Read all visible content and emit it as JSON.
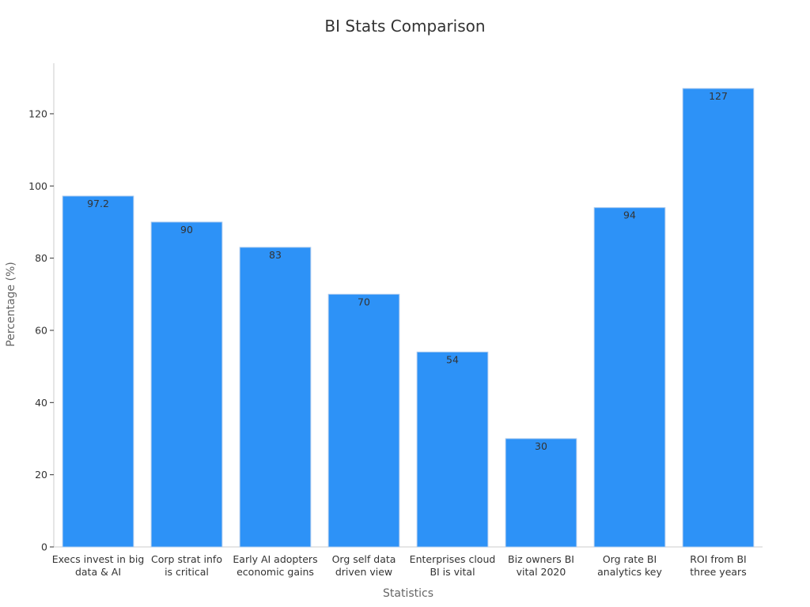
{
  "chart_data": {
    "type": "bar",
    "title": "BI Stats Comparison",
    "xlabel": "Statistics",
    "ylabel": "Percentage (%)",
    "categories": [
      [
        "Execs invest in big",
        "data & AI"
      ],
      [
        "Corp strat info",
        "is critical"
      ],
      [
        "Early AI adopters",
        "economic gains"
      ],
      [
        "Org self data",
        "driven view"
      ],
      [
        "Enterprises cloud",
        "BI is vital"
      ],
      [
        "Biz owners BI",
        "vital 2020"
      ],
      [
        "Org rate BI",
        "analytics key"
      ],
      [
        "ROI from BI",
        "three years"
      ]
    ],
    "values": [
      97.2,
      90,
      83,
      70,
      54,
      30,
      94,
      127
    ],
    "value_labels": [
      "97.2",
      "90",
      "83",
      "70",
      "54",
      "30",
      "94",
      "127"
    ],
    "yticks": [
      0,
      20,
      40,
      60,
      80,
      100,
      120
    ],
    "ylim": [
      0,
      134
    ],
    "bar_color": "#2d92f7",
    "grid": false,
    "legend": "none"
  }
}
